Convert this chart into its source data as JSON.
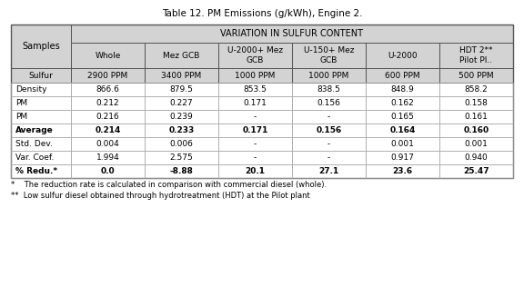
{
  "title": "Table 12. PM Emissions (g/kWh), Engine 2.",
  "header_main": "VARIATION IN SULFUR CONTENT",
  "col_headers": [
    "Whole",
    "Mez GCB",
    "U-2000+ Mez\nGCB",
    "U-150+ Mez\nGCB",
    "U-2000",
    "HDT 2**\nPilot Pl.."
  ],
  "sulfur_row_label": "Sulfur",
  "sulfur_row": [
    "2900 PPM",
    "3400 PPM",
    "1000 PPM",
    "1000 PPM",
    "600 PPM",
    "500 PPM"
  ],
  "samples_label": "Samples",
  "rows": [
    {
      "label": "Density",
      "values": [
        "866.6",
        "879.5",
        "853.5",
        "838.5",
        "848.9",
        "858.2"
      ],
      "bold_values": false
    },
    {
      "label": "PM",
      "values": [
        "0.212",
        "0.227",
        "0.171",
        "0.156",
        "0.162",
        "0.158"
      ],
      "bold_values": false
    },
    {
      "label": "PM",
      "values": [
        "0.216",
        "0.239",
        "-",
        "-",
        "0.165",
        "0.161"
      ],
      "bold_values": false
    },
    {
      "label": "Average",
      "values": [
        "0.214",
        "0.233",
        "0.171",
        "0.156",
        "0.164",
        "0.160"
      ],
      "bold_values": true
    },
    {
      "label": "Std. Dev.",
      "values": [
        "0.004",
        "0.006",
        "-",
        "-",
        "0.001",
        "0.001"
      ],
      "bold_values": false
    },
    {
      "label": "Var. Coef.",
      "values": [
        "1.994",
        "2.575",
        "-",
        "-",
        "0.917",
        "0.940"
      ],
      "bold_values": false
    },
    {
      "label": "% Redu.*",
      "values": [
        "0.0",
        "-8.88",
        "20.1",
        "27.1",
        "23.6",
        "25.47"
      ],
      "bold_values": true
    }
  ],
  "footnote1": "*    The reduction rate is calculated in comparison with commercial diesel (whole).",
  "footnote2": "**  Low sulfur diesel obtained through hydrotreatment (HDT) at the Pilot plant",
  "header_bg": "#d3d3d3",
  "sulfur_bg": "#d3d3d3",
  "col_header_bg": "#d3d3d3",
  "samples_bg": "#d3d3d3",
  "white_bg": "#ffffff",
  "outer_border": "#555555",
  "inner_border": "#aaaaaa",
  "title_fontsize": 7.5,
  "header_fontsize": 7.0,
  "col_header_fontsize": 6.5,
  "data_fontsize": 6.5,
  "footnote_fontsize": 6.0
}
